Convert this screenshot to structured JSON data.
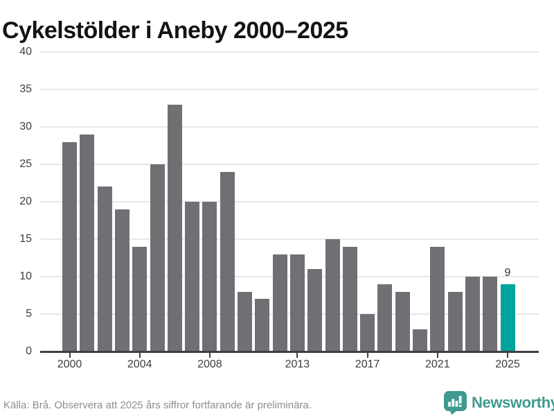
{
  "page": {
    "title": "Cykelstölder i Aneby 2000–2025"
  },
  "chart_data": {
    "type": "bar",
    "title": "Cykelstölder i Aneby 2000–2025",
    "categories": [
      2000,
      2001,
      2002,
      2003,
      2004,
      2005,
      2006,
      2007,
      2008,
      2009,
      2010,
      2011,
      2012,
      2013,
      2014,
      2015,
      2016,
      2017,
      2018,
      2019,
      2020,
      2021,
      2022,
      2023,
      2024,
      2025
    ],
    "values": [
      28,
      29,
      22,
      19,
      14,
      25,
      33,
      20,
      20,
      24,
      8,
      7,
      13,
      13,
      11,
      15,
      14,
      5,
      9,
      8,
      3,
      14,
      8,
      10,
      10,
      9
    ],
    "highlight": {
      "year": 2025,
      "value": 9,
      "label": "9"
    },
    "x_tick_years": [
      2000,
      2004,
      2008,
      2013,
      2017,
      2021,
      2025
    ],
    "y_ticks": [
      0,
      5,
      10,
      15,
      20,
      25,
      30,
      35,
      40
    ],
    "ylim": [
      0,
      40
    ],
    "grid": "horizontal",
    "legend": "none",
    "xlabel": "",
    "ylabel": ""
  },
  "colors": {
    "bar": "#706f74",
    "highlight": "#00a49c",
    "axis": "#3f3f3f",
    "gridline": "#e7e7e7",
    "tick_label": "#3d3d3d",
    "title_text": "#131313",
    "footer_text": "#8d8d8d",
    "brand_teal": "#3f9a8e"
  },
  "footer": {
    "source": "Källa: Brå. Observera att 2025 års siffror fortfarande är preliminära.",
    "brand": "Newsworthy"
  }
}
